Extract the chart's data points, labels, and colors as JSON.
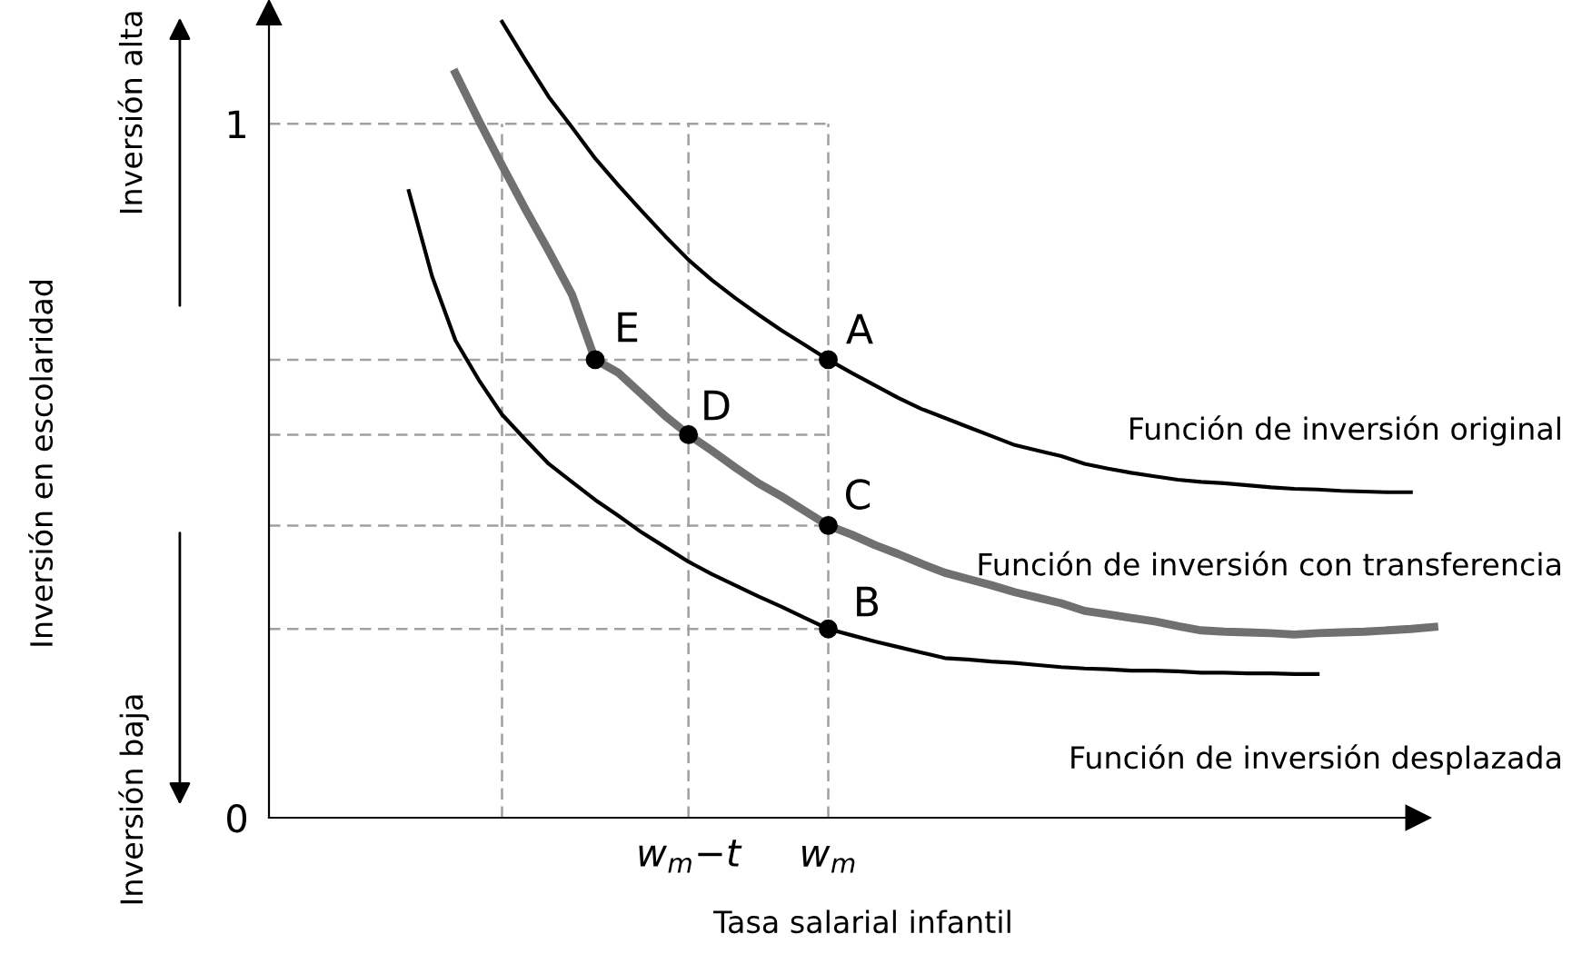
{
  "chart_data": {
    "type": "line",
    "xlabel": "Tasa salarial infantil",
    "categories": [
      null,
      null,
      null,
      null,
      null,
      null,
      null,
      null,
      null,
      null,
      null,
      null,
      null,
      null,
      null,
      null,
      null,
      null,
      "w$_{m}$−t",
      null,
      null,
      null,
      null,
      null,
      "w$_{m}$",
      null,
      null,
      null,
      null,
      null,
      null,
      null,
      null,
      null,
      null,
      null,
      null,
      null,
      null,
      null,
      null,
      null,
      null,
      null,
      null,
      null,
      null,
      null,
      null,
      null,
      null,
      null
    ],
    "ylim": [
      0,
      1.16
    ],
    "yticks": [
      0,
      1
    ],
    "grid": "x",
    "series": [
      {
        "name": "Función de inversión original",
        "color": "#000000",
        "values": [
          null,
          null,
          null,
          null,
          null,
          null,
          null,
          null,
          null,
          null,
          1.147,
          1.092,
          1.039,
          0.995,
          0.95,
          0.911,
          0.874,
          0.838,
          0.804,
          0.775,
          0.749,
          0.725,
          0.702,
          0.681,
          0.66,
          0.641,
          0.623,
          0.605,
          0.589,
          0.576,
          0.563,
          0.55,
          0.537,
          0.529,
          0.521,
          0.51,
          0.503,
          0.497,
          0.492,
          0.487,
          0.484,
          0.482,
          0.479,
          0.476,
          0.474,
          0.473,
          0.471,
          0.47,
          0.469,
          0.469,
          null,
          null
        ]
      },
      {
        "name": "Función de inversión con transferencia",
        "color": "#707070",
        "values": [
          null,
          null,
          null,
          null,
          null,
          null,
          null,
          null,
          1.073,
          1.005,
          0.94,
          0.877,
          0.817,
          0.754,
          0.66,
          0.641,
          0.61,
          0.579,
          0.552,
          0.529,
          0.505,
          0.482,
          0.463,
          0.442,
          0.421,
          0.408,
          0.393,
          0.38,
          0.366,
          0.353,
          0.344,
          0.335,
          0.325,
          0.317,
          0.309,
          0.298,
          0.293,
          0.288,
          0.283,
          0.276,
          0.27,
          0.268,
          0.267,
          0.266,
          0.264,
          0.266,
          0.267,
          0.268,
          0.27,
          0.272,
          0.275,
          null
        ]
      },
      {
        "name": "Función de inversión desplazada",
        "color": "#000000",
        "values": [
          null,
          null,
          null,
          null,
          null,
          null,
          0.903,
          0.78,
          0.688,
          0.631,
          0.581,
          0.545,
          0.51,
          0.484,
          0.458,
          0.435,
          0.411,
          0.39,
          0.369,
          0.351,
          0.335,
          0.319,
          0.304,
          0.288,
          0.272,
          0.263,
          0.254,
          0.246,
          0.238,
          0.23,
          0.228,
          0.225,
          0.223,
          0.22,
          0.217,
          0.215,
          0.214,
          0.212,
          0.212,
          0.211,
          0.209,
          0.209,
          0.208,
          0.208,
          0.207,
          0.207,
          null,
          null,
          null,
          null,
          null,
          null
        ]
      },
      {
        "type": "scatter",
        "color": "#000000",
        "marker": "circle",
        "values": [
          null,
          null,
          null,
          null,
          null,
          null,
          null,
          null,
          null,
          null,
          null,
          null,
          null,
          null,
          null,
          null,
          null,
          null,
          null,
          null,
          null,
          null,
          null,
          null,
          0.66,
          null,
          null,
          null,
          null,
          null,
          null,
          null,
          null,
          null,
          null,
          null,
          null,
          null,
          null,
          null,
          null,
          null,
          null,
          null,
          null,
          null,
          null,
          null,
          null,
          null,
          null,
          null
        ]
      },
      {
        "type": "scatter",
        "color": "#000000",
        "marker": "circle",
        "values": [
          null,
          null,
          null,
          null,
          null,
          null,
          null,
          null,
          null,
          null,
          null,
          null,
          null,
          null,
          0.66,
          null,
          null,
          null,
          0.552,
          null,
          null,
          null,
          null,
          null,
          0.421,
          null,
          null,
          null,
          null,
          null,
          null,
          null,
          null,
          null,
          null,
          null,
          null,
          null,
          null,
          null,
          null,
          null,
          null,
          null,
          null,
          null,
          null,
          null,
          null,
          null,
          null,
          null
        ]
      },
      {
        "type": "scatter",
        "color": "#000000",
        "marker": "circle",
        "values": [
          null,
          null,
          null,
          null,
          null,
          null,
          null,
          null,
          null,
          null,
          null,
          null,
          null,
          null,
          null,
          null,
          null,
          null,
          null,
          null,
          null,
          null,
          null,
          null,
          0.272,
          null,
          null,
          null,
          null,
          null,
          null,
          null,
          null,
          null,
          null,
          null,
          null,
          null,
          null,
          null,
          null,
          null,
          null,
          null,
          null,
          null,
          null,
          null,
          null,
          null,
          null,
          null
        ]
      }
    ],
    "ref_lines": [
      {
        "axis": "y",
        "value": 1,
        "color": "#a0a0a0",
        "line_style": "dashed"
      },
      {
        "axis": "y",
        "value": 0.66,
        "color": "#a0a0a0",
        "line_style": "dashed"
      },
      {
        "axis": "y",
        "value": 0.552,
        "color": "#a0a0a0",
        "line_style": "dashed"
      },
      {
        "axis": "y",
        "value": 0.421,
        "color": "#a0a0a0",
        "line_style": "dashed"
      },
      {
        "axis": "y",
        "value": 0.272,
        "color": "#a0a0a0",
        "line_style": "dashed"
      }
    ],
    "annotations": [
      "Inversión en escolaridad",
      "Inversión alta",
      "Inversión baja",
      "E",
      "D",
      "A",
      "C",
      "B"
    ]
  }
}
